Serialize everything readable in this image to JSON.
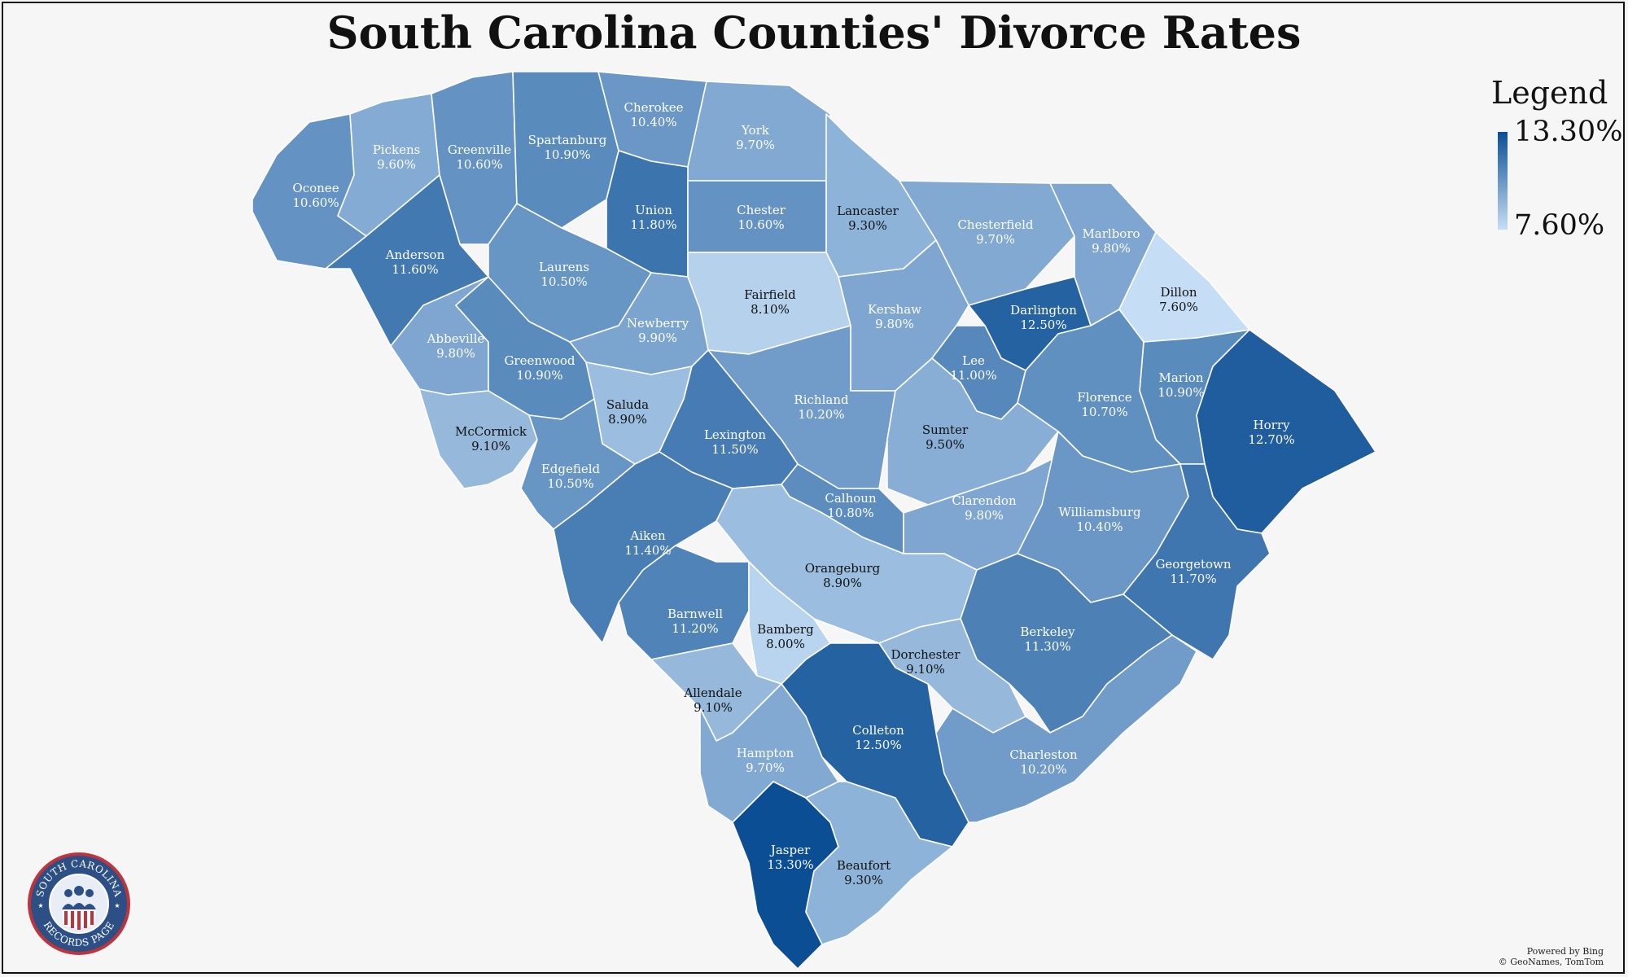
{
  "title": "South Carolina Counties' Divorce Rates",
  "legend": {
    "title": "Legend",
    "max_label": "13.30%",
    "min_label": "7.60%",
    "max_value": 13.3,
    "min_value": 7.6,
    "color_low": "#c6def5",
    "color_high": "#0b4e94"
  },
  "counties": [
    {
      "name": "Oconee",
      "value": 10.6,
      "label": "10.60%"
    },
    {
      "name": "Pickens",
      "value": 9.6,
      "label": "9.60%"
    },
    {
      "name": "Greenville",
      "value": 10.6,
      "label": "10.60%"
    },
    {
      "name": "Spartanburg",
      "value": 10.9,
      "label": "10.90%"
    },
    {
      "name": "Cherokee",
      "value": 10.4,
      "label": "10.40%"
    },
    {
      "name": "York",
      "value": 9.7,
      "label": "9.70%"
    },
    {
      "name": "Union",
      "value": 11.8,
      "label": "11.80%"
    },
    {
      "name": "Chester",
      "value": 10.6,
      "label": "10.60%"
    },
    {
      "name": "Lancaster",
      "value": 9.3,
      "label": "9.30%"
    },
    {
      "name": "Chesterfield",
      "value": 9.7,
      "label": "9.70%"
    },
    {
      "name": "Marlboro",
      "value": 9.8,
      "label": "9.80%"
    },
    {
      "name": "Anderson",
      "value": 11.6,
      "label": "11.60%"
    },
    {
      "name": "Laurens",
      "value": 10.5,
      "label": "10.50%"
    },
    {
      "name": "Fairfield",
      "value": 8.1,
      "label": "8.10%"
    },
    {
      "name": "Kershaw",
      "value": 9.8,
      "label": "9.80%"
    },
    {
      "name": "Darlington",
      "value": 12.5,
      "label": "12.50%"
    },
    {
      "name": "Dillon",
      "value": 7.6,
      "label": "7.60%"
    },
    {
      "name": "Abbeville",
      "value": 9.8,
      "label": "9.80%"
    },
    {
      "name": "Newberry",
      "value": 9.9,
      "label": "9.90%"
    },
    {
      "name": "Greenwood",
      "value": 10.9,
      "label": "10.90%"
    },
    {
      "name": "Lee",
      "value": 11.0,
      "label": "11.00%"
    },
    {
      "name": "Marion",
      "value": 10.9,
      "label": "10.90%"
    },
    {
      "name": "Saluda",
      "value": 8.9,
      "label": "8.90%"
    },
    {
      "name": "Richland",
      "value": 10.2,
      "label": "10.20%"
    },
    {
      "name": "Florence",
      "value": 10.7,
      "label": "10.70%"
    },
    {
      "name": "Horry",
      "value": 12.7,
      "label": "12.70%"
    },
    {
      "name": "McCormick",
      "value": 9.1,
      "label": "9.10%"
    },
    {
      "name": "Lexington",
      "value": 11.5,
      "label": "11.50%"
    },
    {
      "name": "Sumter",
      "value": 9.5,
      "label": "9.50%"
    },
    {
      "name": "Edgefield",
      "value": 10.5,
      "label": "10.50%"
    },
    {
      "name": "Calhoun",
      "value": 10.8,
      "label": "10.80%"
    },
    {
      "name": "Clarendon",
      "value": 9.8,
      "label": "9.80%"
    },
    {
      "name": "Williamsburg",
      "value": 10.4,
      "label": "10.40%"
    },
    {
      "name": "Aiken",
      "value": 11.4,
      "label": "11.40%"
    },
    {
      "name": "Georgetown",
      "value": 11.7,
      "label": "11.70%"
    },
    {
      "name": "Orangeburg",
      "value": 8.9,
      "label": "8.90%"
    },
    {
      "name": "Barnwell",
      "value": 11.2,
      "label": "11.20%"
    },
    {
      "name": "Bamberg",
      "value": 8.0,
      "label": "8.00%"
    },
    {
      "name": "Berkeley",
      "value": 11.3,
      "label": "11.30%"
    },
    {
      "name": "Dorchester",
      "value": 9.1,
      "label": "9.10%"
    },
    {
      "name": "Allendale",
      "value": 9.1,
      "label": "9.10%"
    },
    {
      "name": "Colleton",
      "value": 12.5,
      "label": "12.50%"
    },
    {
      "name": "Hampton",
      "value": 9.7,
      "label": "9.70%"
    },
    {
      "name": "Charleston",
      "value": 10.2,
      "label": "10.20%"
    },
    {
      "name": "Jasper",
      "value": 13.3,
      "label": "13.30%"
    },
    {
      "name": "Beaufort",
      "value": 9.3,
      "label": "9.30%"
    }
  ],
  "seal": {
    "text_top": "SOUTH CAROLINA",
    "text_bottom": "RECORDS PAGE"
  },
  "credit": {
    "line1": "Powered by Bing",
    "line2": "© GeoNames, TomTom"
  }
}
